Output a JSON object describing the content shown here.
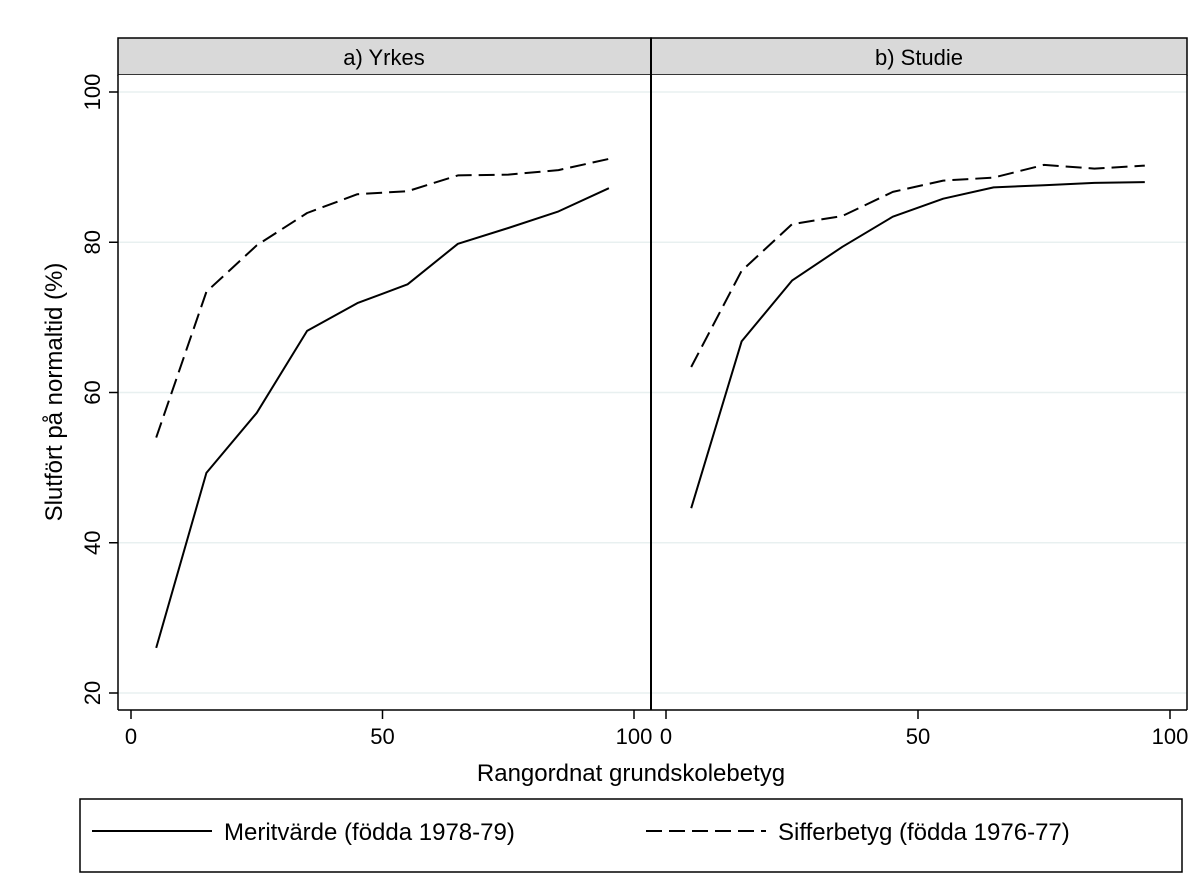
{
  "chart_data": {
    "type": "line",
    "xlabel": "Rangordnat grundskolebetyg",
    "ylabel": "Slutfört på normaltid (%)",
    "ylim": [
      20,
      100
    ],
    "yticks": [
      20,
      40,
      60,
      80,
      100
    ],
    "xlim": [
      0,
      100
    ],
    "xticks": [
      0,
      50,
      100
    ],
    "grid": "horizontal",
    "legend_position": "bottom",
    "colors": {
      "line": "#000000",
      "strip": "#d9d9d9",
      "grid": "#e8f0f0"
    },
    "series_styles": [
      "solid",
      "dashed"
    ],
    "legend": [
      "Meritvärde (födda 1978-79)",
      "Sifferbetyg (födda 1976-77)"
    ],
    "panels": [
      {
        "title": "a) Yrkes",
        "series": [
          {
            "name": "Meritvärde (födda 1978-79)",
            "x": [
              5,
              15,
              25,
              35,
              45,
              55,
              65,
              75,
              85,
              95
            ],
            "y": [
              26,
              49.3,
              57.3,
              68.2,
              71.9,
              74.4,
              79.8,
              81.9,
              84.1,
              87.2
            ]
          },
          {
            "name": "Sifferbetyg (födda 1976-77)",
            "x": [
              5,
              15,
              25,
              35,
              45,
              55,
              65,
              75,
              85,
              95
            ],
            "y": [
              54,
              73.4,
              79.6,
              83.9,
              86.4,
              86.8,
              88.9,
              89,
              89.6,
              91.1
            ]
          }
        ]
      },
      {
        "title": "b) Studie",
        "series": [
          {
            "name": "Meritvärde (födda 1978-79)",
            "x": [
              5,
              15,
              25,
              35,
              45,
              55,
              65,
              75,
              85,
              95
            ],
            "y": [
              44.6,
              66.8,
              74.9,
              79.4,
              83.4,
              85.8,
              87.3,
              87.6,
              87.9,
              88
            ]
          },
          {
            "name": "Sifferbetyg (födda 1976-77)",
            "x": [
              5,
              15,
              25,
              35,
              45,
              55,
              65,
              75,
              85,
              95
            ],
            "y": [
              63.4,
              76.2,
              82.4,
              83.5,
              86.7,
              88.2,
              88.6,
              90.3,
              89.8,
              90.2
            ]
          }
        ]
      }
    ]
  }
}
